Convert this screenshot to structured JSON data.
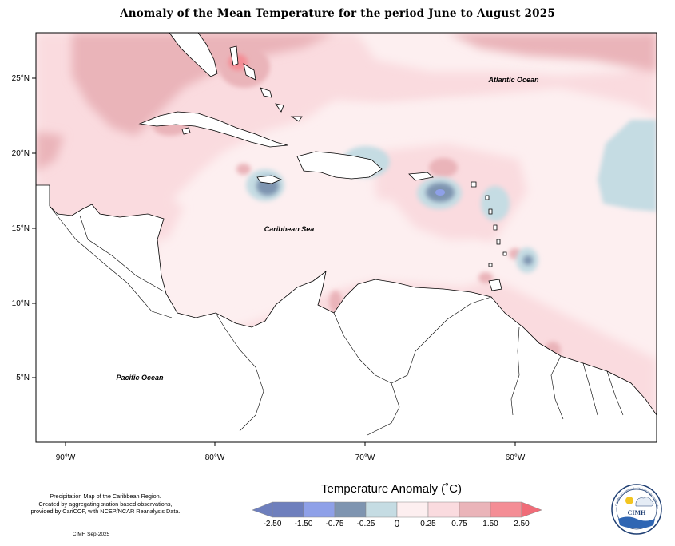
{
  "title": "Anomaly of the Mean Temperature for the period June to August 2025",
  "map": {
    "lat_ticks": [
      "25°N",
      "20°N",
      "15°N",
      "10°N",
      "5°N"
    ],
    "lon_ticks": [
      "90°W",
      "80°W",
      "70°W",
      "60°W"
    ],
    "labels": {
      "atlantic": "Atlantic Ocean",
      "caribbean": "Caribbean Sea",
      "pacific": "Pacific Ocean"
    }
  },
  "colors": {
    "neg_250": "#6e7fbd",
    "neg_150": "#8ea0e8",
    "neg_075": "#7e94b0",
    "neg_025": "#c5dce3",
    "zero": "#fdeff0",
    "pos_025": "#fadbdf",
    "pos_075": "#eab4b9",
    "pos_150": "#f48d95",
    "pos_250": "#f06c78",
    "land": "#ffffff"
  },
  "legend": {
    "title": "Temperature Anomaly (˚C)",
    "ticks": [
      "-2.50",
      "-1.50",
      "-0.75",
      "-0.25",
      "0",
      "0.25",
      "0.75",
      "1.50",
      "2.50"
    ]
  },
  "notes": {
    "line1": "Precipitation Map of the Caribbean Region.",
    "line2": "Created by aggregating station based observations,",
    "line3": "provided by CariCOF, with NCEP/NCAR Reanalysis Data.",
    "credit": "CIMH Sep-2025"
  },
  "logo": {
    "text": "CIMH",
    "ring_text": "Caribbean Institute for Meteorology and Hydrology"
  }
}
